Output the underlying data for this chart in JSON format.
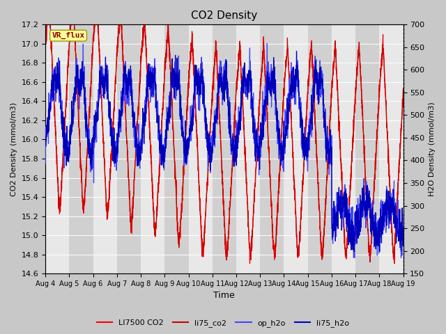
{
  "title": "CO2 Density",
  "xlabel": "Time",
  "ylabel_left": "CO2 Density (mmol/m3)",
  "ylabel_right": "H2O Density (mmol/m3)",
  "ylim_left": [
    14.6,
    17.2
  ],
  "ylim_right": [
    150,
    700
  ],
  "yticks_left": [
    14.6,
    14.8,
    15.0,
    15.2,
    15.4,
    15.6,
    15.8,
    16.0,
    16.2,
    16.4,
    16.6,
    16.8,
    17.0,
    17.2
  ],
  "yticks_right": [
    150,
    200,
    250,
    300,
    350,
    400,
    450,
    500,
    550,
    600,
    650,
    700
  ],
  "xtick_labels": [
    "Aug 4",
    "Aug 5",
    "Aug 6",
    "Aug 7",
    "Aug 8",
    "Aug 9",
    "Aug 10",
    "Aug 11",
    "Aug 12",
    "Aug 13",
    "Aug 14",
    "Aug 15",
    "Aug 16",
    "Aug 17",
    "Aug 18",
    "Aug 19"
  ],
  "legend_labels": [
    "LI7500 CO2",
    "li75_co2",
    "op_h2o",
    "li75_h2o"
  ],
  "co2_color1": "#ff0000",
  "co2_color2": "#cc0000",
  "h2o_color1": "#4444ff",
  "h2o_color2": "#0000bb",
  "vr_flux_label": "VR_flux",
  "bg_band_light": "#e8e8e8",
  "bg_band_dark": "#d0d0d0",
  "figure_bg": "#c8c8c8",
  "num_points": 2000
}
